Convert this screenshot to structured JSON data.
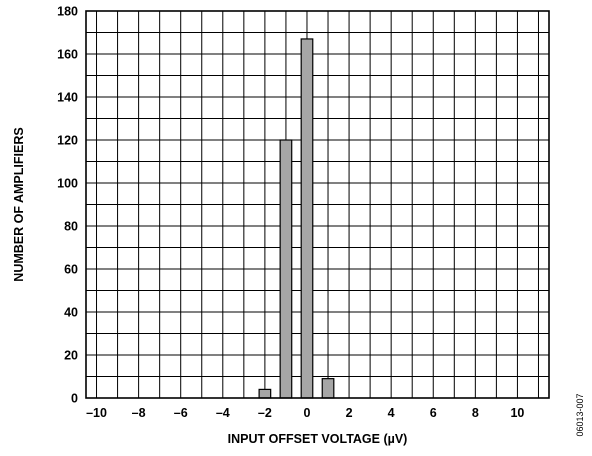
{
  "chart_data": {
    "type": "bar",
    "title": "",
    "xlabel": "INPUT OFFSET VOLTAGE (µV)",
    "ylabel": "NUMBER OF AMPLIFIERS",
    "xlim": [
      -10.5,
      11.5
    ],
    "ylim": [
      0,
      180
    ],
    "xticks": [
      -10,
      -8,
      -6,
      -4,
      -2,
      0,
      2,
      4,
      6,
      8,
      10
    ],
    "xtick_labels": [
      "–10",
      "–8",
      "–6",
      "–4",
      "–2",
      "0",
      "2",
      "4",
      "6",
      "8",
      "10"
    ],
    "yticks": [
      0,
      20,
      40,
      60,
      80,
      100,
      120,
      140,
      160,
      180
    ],
    "grid": true,
    "bar_width": 0.55,
    "x": [
      -2,
      -1,
      0,
      1
    ],
    "values": [
      4,
      120,
      167,
      9
    ],
    "colors": {
      "bar_fill": "#a6a6a6",
      "bar_stroke": "#000000",
      "grid": "#000000"
    }
  },
  "figure_id": "06013-007"
}
